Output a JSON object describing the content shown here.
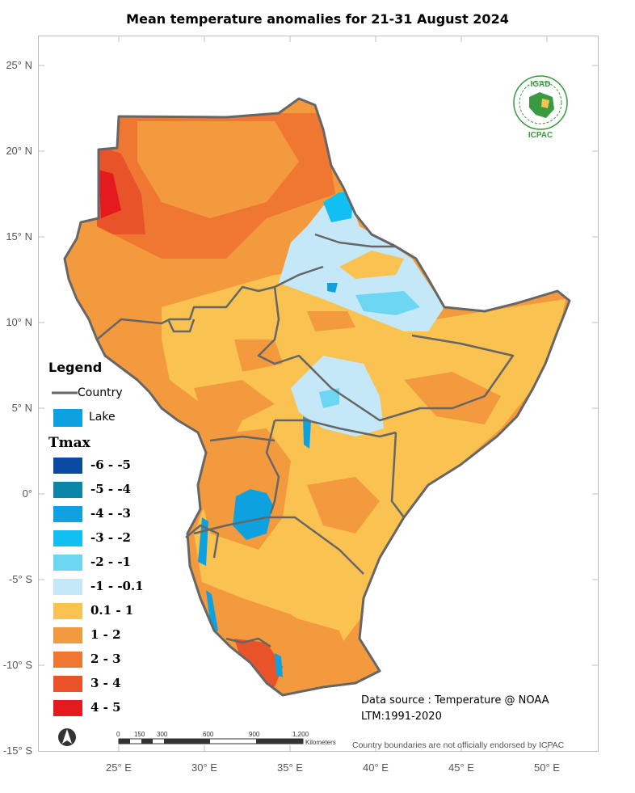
{
  "title": "Mean temperature anomalies for 21-31 August 2024",
  "lat_labels": [
    "25° N",
    "20° N",
    "15° N",
    "10° N",
    "5° N",
    "0°",
    "-5° S",
    "-10° S",
    "-15° S"
  ],
  "lon_labels": [
    "25° E",
    "30° E",
    "35° E",
    "40° E",
    "45° E",
    "50° E"
  ],
  "legend": {
    "title": "Legend",
    "country_label": "Country",
    "lake_label": "Lake",
    "tmax_title": "Tmax",
    "classes": [
      {
        "label": "-6 - -5",
        "color": "#0a4aa3"
      },
      {
        "label": "-5 - -4",
        "color": "#0c86a8"
      },
      {
        "label": "-4 - -3",
        "color": "#11a0e0"
      },
      {
        "label": "-3 - -2",
        "color": "#11bff2"
      },
      {
        "label": "-2 - -1",
        "color": "#6cd6f3"
      },
      {
        "label": "-1 - -0.1",
        "color": "#c4e8f8"
      },
      {
        "label": "0.1 - 1",
        "color": "#f9c251"
      },
      {
        "label": "1 - 2",
        "color": "#f49a3e"
      },
      {
        "label": "2 - 3",
        "color": "#ef7732"
      },
      {
        "label": "3 - 4",
        "color": "#e8532a"
      },
      {
        "label": "4 - 5",
        "color": "#e51a1e"
      }
    ],
    "lake_color": "#0ea1e0",
    "country_color": "#666666"
  },
  "data_source": "Data source : Temperature @ NOAA",
  "ltm": "LTM:1991-2020",
  "disclaimer": "Country boundaries are not officially endorsed by ICPAC",
  "logo": {
    "top_text": "IGAD",
    "bottom_text": "ICPAC",
    "color": "#3a9a3f"
  },
  "scale_bar": {
    "labels": [
      "0",
      "150",
      "300",
      "600",
      "900",
      "1,200"
    ],
    "unit": "Kilometers"
  },
  "north_arrow": "N"
}
